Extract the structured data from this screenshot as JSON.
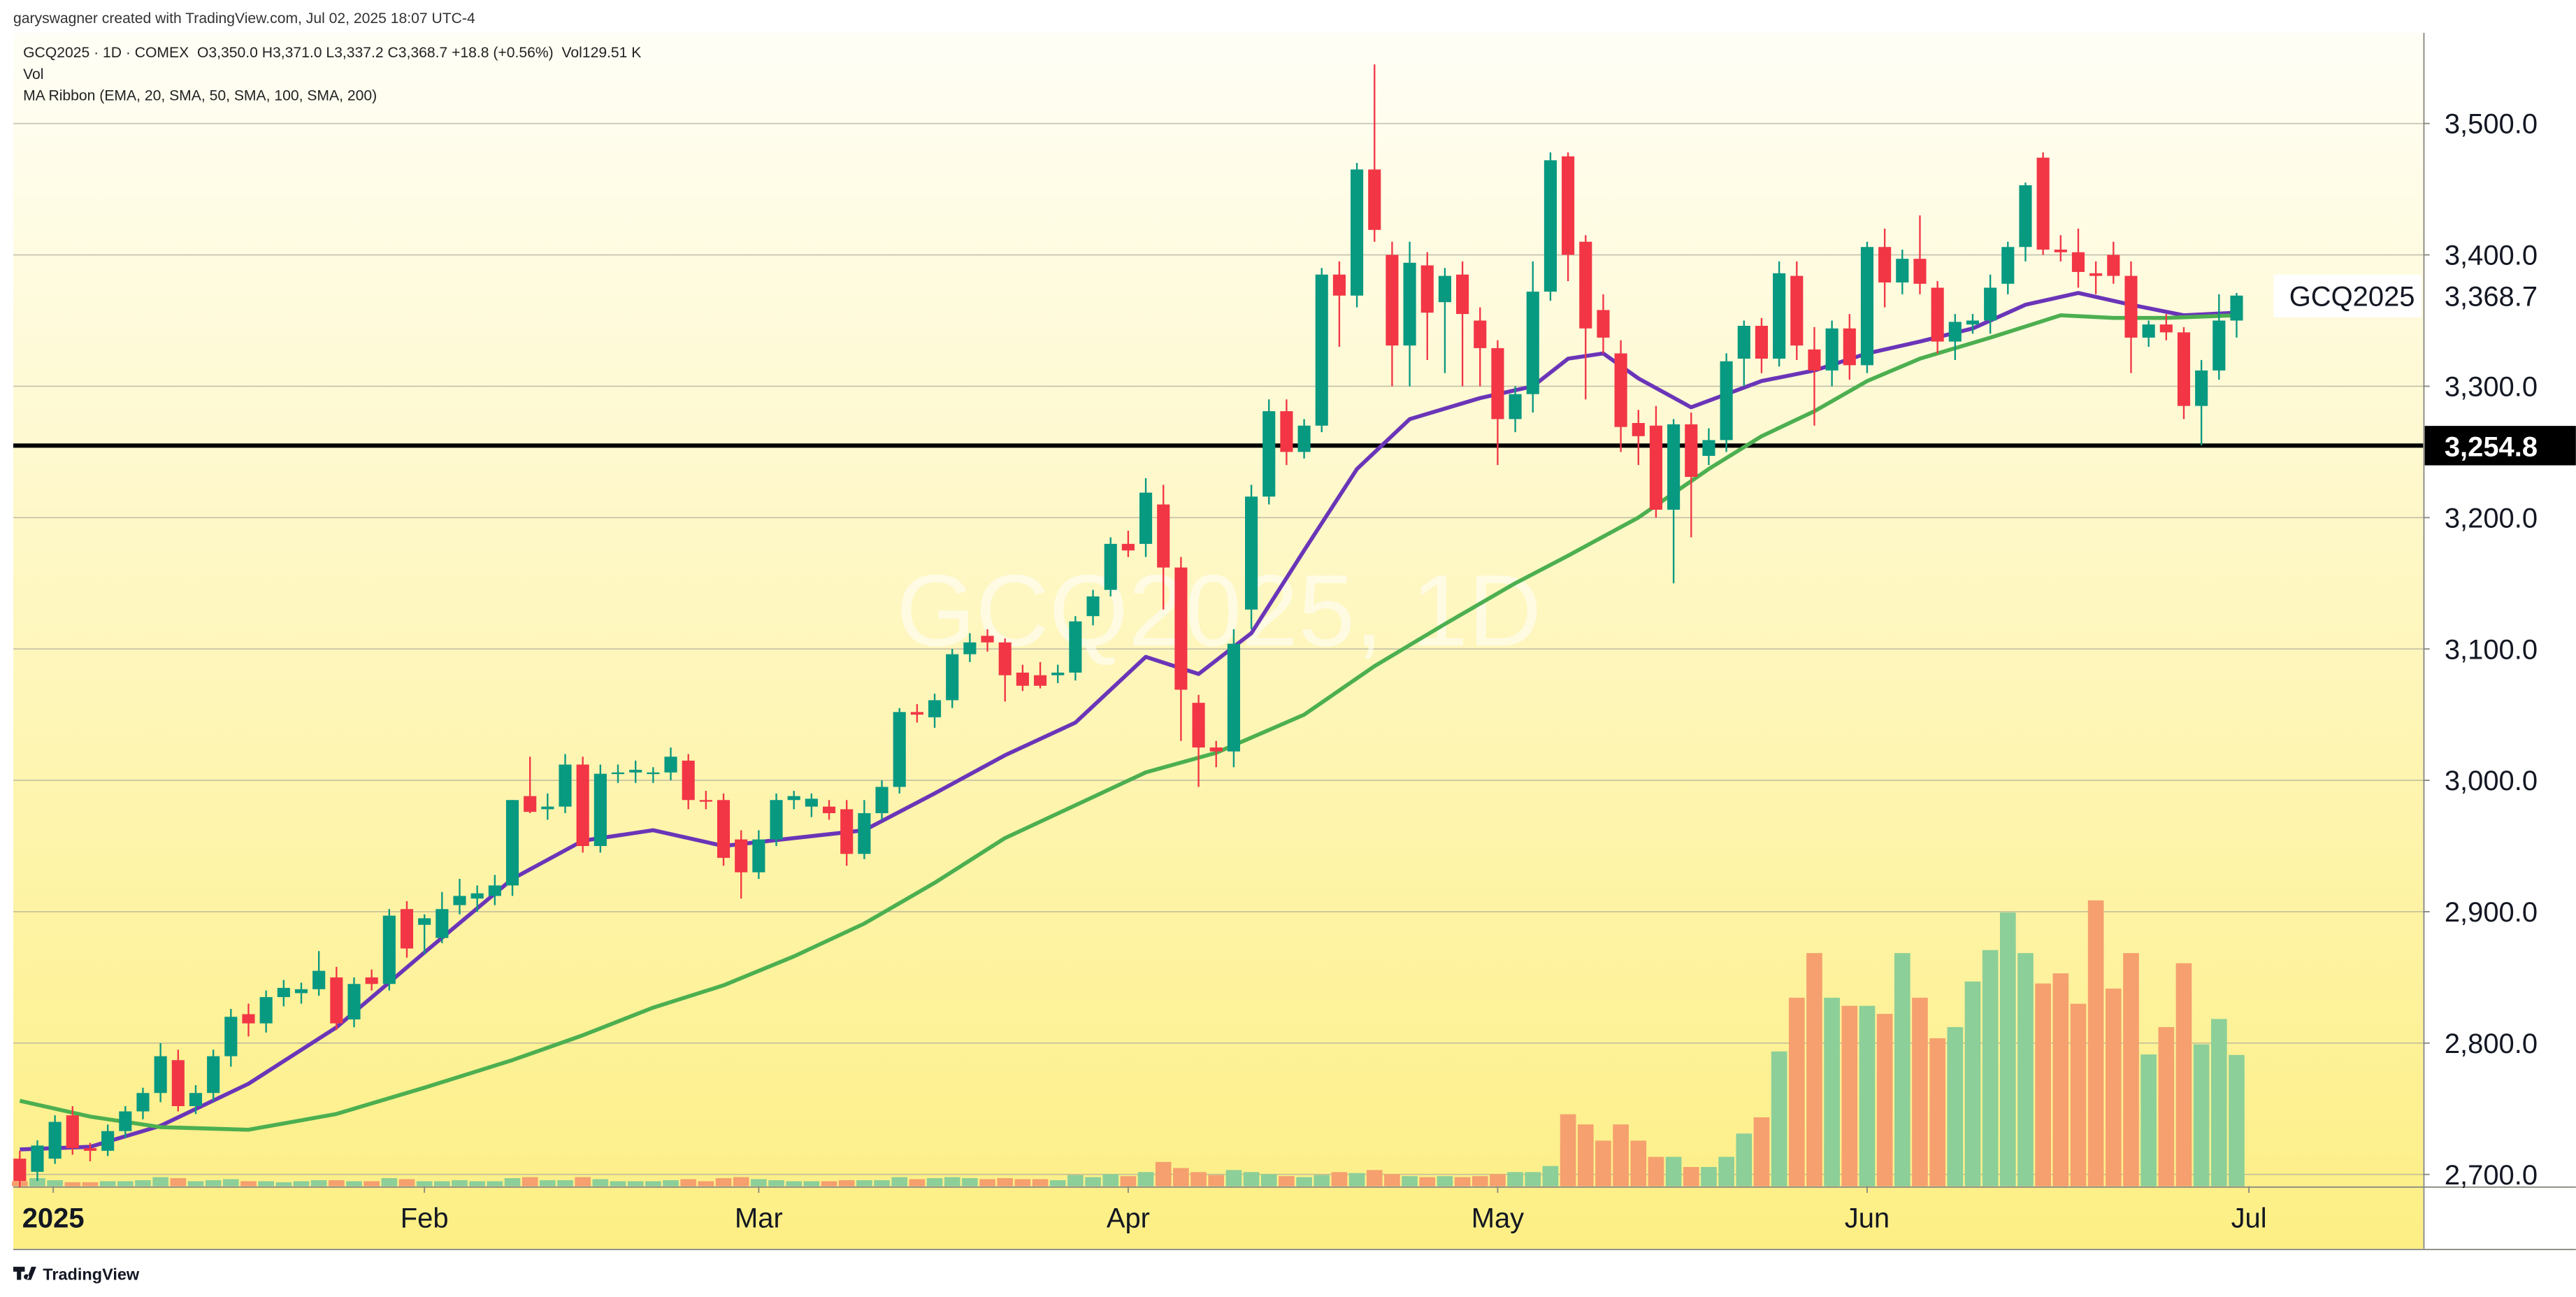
{
  "header": {
    "credit": "garyswagner created with TradingView.com, Jul 02, 2025 18:07 UTC-4",
    "symbol": "GCQ2025 · 1D · COMEX",
    "ohlc_text": "O3,350.0 H3,371.0 L3,337.2 C3,368.7 +18.8 (+0.56%)",
    "vol_text": "Vol129.51 K",
    "vol_label": "Vol",
    "indicator": "MA Ribbon (EMA, 20, SMA, 50, SMA, 100, SMA, 200)"
  },
  "footer": {
    "brand": "TradingView"
  },
  "chart_data": {
    "type": "candlestick",
    "watermark": "GCQ2025, 1D",
    "up_color": "#089981",
    "down_color": "#f23645",
    "volume_up_color": "#8ccf98",
    "volume_down_color": "#f5a06e",
    "ohlc": [
      [
        2712,
        2718,
        2690,
        2695
      ],
      [
        2702,
        2726,
        2695,
        2722
      ],
      [
        2712,
        2745,
        2708,
        2740
      ],
      [
        2745,
        2752,
        2715,
        2720
      ],
      [
        2720,
        2724,
        2710,
        2718
      ],
      [
        2718,
        2738,
        2714,
        2733
      ],
      [
        2733,
        2752,
        2728,
        2748
      ],
      [
        2748,
        2766,
        2742,
        2762
      ],
      [
        2762,
        2800,
        2755,
        2790
      ],
      [
        2787,
        2795,
        2748,
        2752
      ],
      [
        2752,
        2768,
        2746,
        2762
      ],
      [
        2762,
        2795,
        2756,
        2790
      ],
      [
        2790,
        2826,
        2782,
        2820
      ],
      [
        2822,
        2830,
        2805,
        2815
      ],
      [
        2815,
        2840,
        2808,
        2835
      ],
      [
        2835,
        2848,
        2828,
        2842
      ],
      [
        2838,
        2846,
        2830,
        2841
      ],
      [
        2841,
        2870,
        2836,
        2855
      ],
      [
        2850,
        2858,
        2810,
        2815
      ],
      [
        2818,
        2850,
        2812,
        2845
      ],
      [
        2850,
        2856,
        2840,
        2845
      ],
      [
        2845,
        2902,
        2840,
        2897
      ],
      [
        2902,
        2908,
        2865,
        2872
      ],
      [
        2890,
        2898,
        2868,
        2895
      ],
      [
        2880,
        2915,
        2876,
        2902
      ],
      [
        2905,
        2925,
        2898,
        2912
      ],
      [
        2910,
        2920,
        2900,
        2914
      ],
      [
        2912,
        2928,
        2905,
        2920
      ],
      [
        2920,
        2985,
        2912,
        2985
      ],
      [
        2988,
        3018,
        2975,
        2976
      ],
      [
        2978,
        2990,
        2970,
        2980
      ],
      [
        2980,
        3020,
        2975,
        3012
      ],
      [
        3012,
        3018,
        2945,
        2950
      ],
      [
        2950,
        3012,
        2945,
        3005
      ],
      [
        3005,
        3012,
        2998,
        3006
      ],
      [
        3006,
        3015,
        2998,
        3008
      ],
      [
        3005,
        3010,
        2998,
        3006
      ],
      [
        3006,
        3025,
        3000,
        3018
      ],
      [
        3015,
        3020,
        2978,
        2985
      ],
      [
        2985,
        2992,
        2978,
        2984
      ],
      [
        2985,
        2990,
        2935,
        2941
      ],
      [
        2955,
        2962,
        2910,
        2930
      ],
      [
        2930,
        2962,
        2925,
        2955
      ],
      [
        2955,
        2990,
        2950,
        2985
      ],
      [
        2985,
        2992,
        2978,
        2988
      ],
      [
        2980,
        2990,
        2972,
        2986
      ],
      [
        2980,
        2985,
        2970,
        2975
      ],
      [
        2978,
        2985,
        2935,
        2944
      ],
      [
        2944,
        2985,
        2940,
        2975
      ],
      [
        2975,
        3000,
        2970,
        2995
      ],
      [
        2995,
        3055,
        2990,
        3052
      ],
      [
        3052,
        3058,
        3044,
        3050
      ],
      [
        3048,
        3066,
        3040,
        3061
      ],
      [
        3061,
        3100,
        3055,
        3096
      ],
      [
        3096,
        3112,
        3090,
        3105
      ],
      [
        3110,
        3115,
        3098,
        3105
      ],
      [
        3105,
        3108,
        3060,
        3080
      ],
      [
        3082,
        3088,
        3068,
        3072
      ],
      [
        3080,
        3090,
        3070,
        3072
      ],
      [
        3080,
        3088,
        3074,
        3082
      ],
      [
        3082,
        3125,
        3076,
        3121
      ],
      [
        3125,
        3145,
        3118,
        3140
      ],
      [
        3145,
        3185,
        3140,
        3180
      ],
      [
        3180,
        3190,
        3170,
        3175
      ],
      [
        3180,
        3230,
        3170,
        3219
      ],
      [
        3210,
        3225,
        3130,
        3162
      ],
      [
        3162,
        3170,
        3030,
        3069
      ],
      [
        3059,
        3065,
        2995,
        3025
      ],
      [
        3025,
        3030,
        3010,
        3022
      ],
      [
        3022,
        3115,
        3010,
        3104
      ],
      [
        3130,
        3225,
        3115,
        3216
      ],
      [
        3216,
        3290,
        3210,
        3281
      ],
      [
        3281,
        3290,
        3240,
        3250
      ],
      [
        3250,
        3275,
        3245,
        3270
      ],
      [
        3270,
        3390,
        3265,
        3385
      ],
      [
        3385,
        3395,
        3330,
        3369
      ],
      [
        3369,
        3470,
        3360,
        3465
      ],
      [
        3465,
        3545,
        3410,
        3419
      ],
      [
        3400,
        3410,
        3300,
        3331
      ],
      [
        3331,
        3410,
        3300,
        3394
      ],
      [
        3392,
        3402,
        3320,
        3356
      ],
      [
        3364,
        3390,
        3310,
        3384
      ],
      [
        3385,
        3395,
        3300,
        3355
      ],
      [
        3350,
        3360,
        3300,
        3329
      ],
      [
        3329,
        3335,
        3240,
        3275
      ],
      [
        3275,
        3300,
        3265,
        3294
      ],
      [
        3294,
        3395,
        3280,
        3372
      ],
      [
        3372,
        3478,
        3365,
        3472
      ],
      [
        3475,
        3478,
        3380,
        3400
      ],
      [
        3410,
        3415,
        3290,
        3344
      ],
      [
        3358,
        3370,
        3325,
        3337
      ],
      [
        3325,
        3335,
        3250,
        3269
      ],
      [
        3272,
        3282,
        3240,
        3262
      ],
      [
        3270,
        3285,
        3200,
        3206
      ],
      [
        3206,
        3275,
        3150,
        3271
      ],
      [
        3271,
        3280,
        3185,
        3231
      ],
      [
        3247,
        3268,
        3240,
        3259
      ],
      [
        3259,
        3325,
        3250,
        3319
      ],
      [
        3321,
        3350,
        3300,
        3346
      ],
      [
        3346,
        3352,
        3310,
        3321
      ],
      [
        3321,
        3395,
        3315,
        3386
      ],
      [
        3384,
        3395,
        3320,
        3331
      ],
      [
        3328,
        3345,
        3270,
        3312
      ],
      [
        3312,
        3350,
        3300,
        3344
      ],
      [
        3344,
        3355,
        3305,
        3316
      ],
      [
        3316,
        3410,
        3310,
        3406
      ],
      [
        3406,
        3420,
        3360,
        3379
      ],
      [
        3379,
        3404,
        3370,
        3397
      ],
      [
        3397,
        3430,
        3370,
        3378
      ],
      [
        3375,
        3380,
        3325,
        3334
      ],
      [
        3334,
        3355,
        3320,
        3349
      ],
      [
        3347,
        3355,
        3340,
        3350
      ],
      [
        3350,
        3385,
        3340,
        3375
      ],
      [
        3378,
        3410,
        3370,
        3406
      ],
      [
        3406,
        3455,
        3395,
        3453
      ],
      [
        3474,
        3478,
        3400,
        3404
      ],
      [
        3404,
        3415,
        3395,
        3402
      ],
      [
        3402,
        3420,
        3375,
        3387
      ],
      [
        3386,
        3395,
        3370,
        3384
      ],
      [
        3400,
        3410,
        3378,
        3384
      ],
      [
        3384,
        3395,
        3310,
        3337
      ],
      [
        3337,
        3350,
        3330,
        3347
      ],
      [
        3347,
        3355,
        3335,
        3341
      ],
      [
        3341,
        3345,
        3275,
        3285
      ],
      [
        3285,
        3320,
        3255,
        3312
      ],
      [
        3312,
        3370,
        3305,
        3350
      ],
      [
        3350,
        3371,
        3337,
        3369
      ]
    ],
    "volume": [
      5,
      8,
      6,
      4,
      4,
      5,
      5,
      6,
      9,
      8,
      5,
      6,
      7,
      5,
      5,
      4,
      5,
      6,
      6,
      5,
      5,
      8,
      7,
      5,
      5,
      6,
      5,
      5,
      8,
      9,
      6,
      6,
      9,
      7,
      5,
      5,
      5,
      6,
      7,
      5,
      8,
      9,
      7,
      6,
      5,
      5,
      5,
      6,
      6,
      6,
      9,
      7,
      8,
      9,
      8,
      7,
      8,
      7,
      7,
      6,
      11,
      9,
      12,
      10,
      14,
      24,
      18,
      14,
      11,
      16,
      14,
      12,
      10,
      9,
      11,
      14,
      13,
      16,
      12,
      10,
      9,
      10,
      9,
      10,
      12,
      14,
      14,
      20,
      71,
      61,
      45,
      61,
      45,
      29,
      29,
      19,
      19,
      29,
      52,
      68,
      133,
      186,
      230,
      186,
      178,
      178,
      170,
      230,
      186,
      146,
      157,
      202,
      233,
      270,
      230,
      200,
      210,
      180,
      282,
      195,
      230,
      130,
      157,
      220,
      140,
      165,
      129.51
    ],
    "series": [
      {
        "color": "#6a35b8",
        "x": [
          0,
          4,
          8,
          13,
          18,
          23,
          28,
          32,
          36,
          40,
          44,
          48,
          52,
          56,
          60,
          64,
          67,
          70,
          73,
          76,
          79,
          83,
          86,
          88,
          90,
          92,
          95,
          97,
          99,
          102,
          105,
          108,
          111,
          114,
          117,
          120,
          123,
          126
        ],
        "values": [
          2719,
          2721,
          2737,
          2769,
          2812,
          2869,
          2925,
          2954,
          2962,
          2950,
          2956,
          2962,
          2990,
          3019,
          3044,
          3094,
          3081,
          3112,
          3175,
          3237,
          3275,
          3291,
          3300,
          3321,
          3325,
          3306,
          3284,
          3294,
          3304,
          3312,
          3325,
          3334,
          3344,
          3362,
          3371,
          3362,
          3354,
          3356
        ]
      },
      {
        "color": "#4caf50",
        "x": [
          0,
          4,
          8,
          13,
          18,
          23,
          28,
          32,
          36,
          40,
          44,
          48,
          52,
          56,
          60,
          64,
          68,
          73,
          77,
          81,
          85,
          88,
          92,
          96,
          99,
          102,
          105,
          108,
          112,
          116,
          119,
          122,
          126
        ],
        "values": [
          2756,
          2744,
          2736,
          2734,
          2746,
          2766,
          2787,
          2806,
          2827,
          2844,
          2866,
          2891,
          2922,
          2956,
          2981,
          3006,
          3021,
          3050,
          3087,
          3119,
          3150,
          3171,
          3200,
          3237,
          3262,
          3281,
          3304,
          3321,
          3337,
          3354,
          3352,
          3352,
          3354
        ]
      }
    ],
    "hline": {
      "value": 3254.8,
      "label": "3,254.8"
    },
    "last_price": {
      "value": 3368.7,
      "label": "3,368.7",
      "symbol": "GCQ2025"
    },
    "ylim": [
      2691,
      3569
    ],
    "yticks": [
      {
        "value": 2700,
        "label": "2,700.0"
      },
      {
        "value": 2800,
        "label": "2,800.0"
      },
      {
        "value": 2900,
        "label": "2,900.0"
      },
      {
        "value": 3000,
        "label": "3,000.0"
      },
      {
        "value": 3100,
        "label": "3,100.0"
      },
      {
        "value": 3200,
        "label": "3,200.0"
      },
      {
        "value": 3300,
        "label": "3,300.0"
      },
      {
        "value": 3400,
        "label": "3,400.0"
      },
      {
        "value": 3500,
        "label": "3,500.0"
      }
    ],
    "xlim": [
      -0.37,
      136.6
    ],
    "xticks": [
      {
        "value": 1.9,
        "label": "2025"
      },
      {
        "value": 23,
        "label": "Feb"
      },
      {
        "value": 42,
        "label": "Mar"
      },
      {
        "value": 63,
        "label": "Apr"
      },
      {
        "value": 84,
        "label": "May"
      },
      {
        "value": 105,
        "label": "Jun"
      },
      {
        "value": 126.7,
        "label": "Jul"
      }
    ],
    "grid": true
  }
}
